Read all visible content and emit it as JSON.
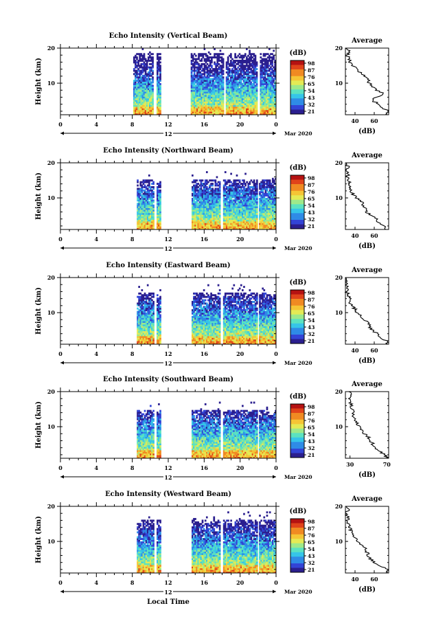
{
  "figure": {
    "date_label": "Mar 2020",
    "xlabel": "Local Time",
    "avg_title": "Average",
    "avg_xlabel": "(dB)",
    "colorbar_unit": "(dB)"
  },
  "colors": {
    "colormap": [
      "#2b1f8f",
      "#3344d6",
      "#2f8be6",
      "#36c5e8",
      "#5ce2c0",
      "#9ee98a",
      "#e4ea55",
      "#f5c535",
      "#f08a22",
      "#e0431a",
      "#b51212"
    ],
    "profile": "#000000"
  },
  "chart_data": [
    {
      "type": "heatmap",
      "title": "Echo Intensity (Vertical Beam)",
      "ylabel": "Height (km)",
      "xlim": [
        0,
        24
      ],
      "ylim": [
        1,
        20
      ],
      "xticks": [
        {
          "v": 0,
          "t": "0"
        },
        {
          "v": 4,
          "t": "4"
        },
        {
          "v": 8,
          "t": "8"
        },
        {
          "v": 12,
          "t": "12"
        },
        {
          "v": 16,
          "t": "16"
        },
        {
          "v": 20,
          "t": "20"
        },
        {
          "v": 24,
          "t": "0"
        }
      ],
      "yticks": [
        {
          "v": 10,
          "t": "10"
        },
        {
          "v": 20,
          "t": "20"
        }
      ],
      "day_label": "12",
      "colorbar_ticks": [
        "98",
        "87",
        "76",
        "65",
        "54",
        "43",
        "32",
        "21"
      ],
      "data_intervals": [
        [
          8.1,
          10.3
        ],
        [
          10.7,
          11.1
        ],
        [
          14.5,
          18.1
        ],
        [
          18.4,
          21.9
        ],
        [
          22.2,
          24
        ]
      ],
      "top_height_km": 18.5,
      "avg_profile": {
        "xlim": [
          30,
          75
        ],
        "xticks": [
          {
            "v": 40,
            "t": "40"
          },
          {
            "v": 60,
            "t": "60"
          }
        ],
        "height_km": [
          1,
          2,
          3,
          4,
          5,
          6,
          7,
          8,
          9,
          10,
          11,
          12,
          13,
          14,
          15,
          16,
          17,
          18,
          19,
          20
        ],
        "db": [
          72,
          75,
          68,
          66,
          58,
          62,
          70,
          62,
          58,
          55,
          54,
          50,
          46,
          42,
          38,
          35,
          33,
          32,
          35,
          30
        ]
      }
    },
    {
      "type": "heatmap",
      "title": "Echo Intensity (Northward Beam)",
      "ylabel": "Height (km)",
      "xlim": [
        0,
        24
      ],
      "ylim": [
        1,
        20
      ],
      "xticks": [
        {
          "v": 0,
          "t": "0"
        },
        {
          "v": 4,
          "t": "4"
        },
        {
          "v": 8,
          "t": "8"
        },
        {
          "v": 12,
          "t": "12"
        },
        {
          "v": 16,
          "t": "16"
        },
        {
          "v": 20,
          "t": "20"
        },
        {
          "v": 24,
          "t": "0"
        }
      ],
      "yticks": [
        {
          "v": 10,
          "t": "10"
        },
        {
          "v": 20,
          "t": "20"
        }
      ],
      "day_label": "12",
      "colorbar_ticks": [
        "98",
        "87",
        "76",
        "65",
        "54",
        "43",
        "32",
        "21"
      ],
      "data_intervals": [
        [
          8.5,
          10.3
        ],
        [
          10.7,
          11.1
        ],
        [
          14.6,
          17.8
        ],
        [
          18.1,
          21.8
        ],
        [
          22.1,
          24
        ]
      ],
      "top_height_km": 15,
      "avg_profile": {
        "xlim": [
          30,
          75
        ],
        "xticks": [
          {
            "v": 40,
            "t": "40"
          },
          {
            "v": 60,
            "t": "60"
          }
        ],
        "height_km": [
          1,
          2,
          3,
          4,
          5,
          6,
          7,
          8,
          9,
          10,
          11,
          12,
          13,
          14,
          15,
          16,
          17,
          18,
          19,
          20
        ],
        "db": [
          72,
          70,
          64,
          62,
          56,
          52,
          52,
          48,
          46,
          42,
          38,
          36,
          34,
          35,
          33,
          32,
          33,
          31,
          33,
          30
        ]
      }
    },
    {
      "type": "heatmap",
      "title": "Echo Intensity (Eastward Beam)",
      "ylabel": "Height (km)",
      "xlim": [
        0,
        24
      ],
      "ylim": [
        1,
        20
      ],
      "xticks": [
        {
          "v": 0,
          "t": "0"
        },
        {
          "v": 4,
          "t": "4"
        },
        {
          "v": 8,
          "t": "8"
        },
        {
          "v": 12,
          "t": "12"
        },
        {
          "v": 16,
          "t": "16"
        },
        {
          "v": 20,
          "t": "20"
        },
        {
          "v": 24,
          "t": "0"
        }
      ],
      "yticks": [
        {
          "v": 10,
          "t": "10"
        },
        {
          "v": 20,
          "t": "20"
        }
      ],
      "day_label": "12",
      "colorbar_ticks": [
        "98",
        "87",
        "76",
        "65",
        "54",
        "43",
        "32",
        "21"
      ],
      "data_intervals": [
        [
          8.5,
          10.3
        ],
        [
          10.7,
          11.1
        ],
        [
          14.6,
          17.8
        ],
        [
          18.1,
          21.8
        ],
        [
          22.1,
          24
        ]
      ],
      "top_height_km": 15.5,
      "avg_profile": {
        "xlim": [
          30,
          75
        ],
        "xticks": [
          {
            "v": 40,
            "t": "40"
          },
          {
            "v": 60,
            "t": "60"
          }
        ],
        "height_km": [
          1,
          2,
          3,
          4,
          5,
          6,
          7,
          8,
          9,
          10,
          11,
          12,
          13,
          14,
          15,
          16,
          17,
          18,
          19,
          20
        ],
        "db": [
          74,
          72,
          66,
          63,
          58,
          55,
          54,
          50,
          46,
          42,
          40,
          37,
          35,
          34,
          33,
          31,
          32,
          30,
          32,
          30
        ]
      }
    },
    {
      "type": "heatmap",
      "title": "Echo Intensity (Southward Beam)",
      "ylabel": "Height (km)",
      "xlim": [
        0,
        24
      ],
      "ylim": [
        1,
        20
      ],
      "xticks": [
        {
          "v": 0,
          "t": "0"
        },
        {
          "v": 4,
          "t": "4"
        },
        {
          "v": 8,
          "t": "8"
        },
        {
          "v": 12,
          "t": "12"
        },
        {
          "v": 16,
          "t": "16"
        },
        {
          "v": 20,
          "t": "20"
        },
        {
          "v": 24,
          "t": "0"
        }
      ],
      "yticks": [
        {
          "v": 10,
          "t": "10"
        },
        {
          "v": 20,
          "t": "20"
        }
      ],
      "day_label": "12",
      "colorbar_ticks": [
        "98",
        "87",
        "76",
        "65",
        "54",
        "43",
        "32",
        "21"
      ],
      "data_intervals": [
        [
          8.5,
          10.3
        ],
        [
          10.7,
          11.1
        ],
        [
          14.6,
          17.8
        ],
        [
          18.1,
          21.8
        ],
        [
          22.1,
          24
        ]
      ],
      "top_height_km": 14.5,
      "avg_profile": {
        "xlim": [
          25,
          72
        ],
        "xticks": [
          {
            "v": 30,
            "t": "30"
          },
          {
            "v": 70,
            "t": "70"
          }
        ],
        "height_km": [
          1,
          2,
          3,
          4,
          5,
          6,
          7,
          8,
          9,
          10,
          11,
          12,
          13,
          14,
          15,
          16,
          17,
          18,
          19,
          20
        ],
        "db": [
          70,
          68,
          62,
          58,
          55,
          52,
          50,
          46,
          44,
          40,
          38,
          36,
          34,
          33,
          32,
          31,
          31,
          30,
          32,
          30
        ]
      }
    },
    {
      "type": "heatmap",
      "title": "Echo Intensity (Westward Beam)",
      "ylabel": "Height (km)",
      "xlim": [
        0,
        24
      ],
      "ylim": [
        1,
        20
      ],
      "xticks": [
        {
          "v": 0,
          "t": "0"
        },
        {
          "v": 4,
          "t": "4"
        },
        {
          "v": 8,
          "t": "8"
        },
        {
          "v": 12,
          "t": "12"
        },
        {
          "v": 16,
          "t": "16"
        },
        {
          "v": 20,
          "t": "20"
        },
        {
          "v": 24,
          "t": "0"
        }
      ],
      "yticks": [
        {
          "v": 10,
          "t": "10"
        },
        {
          "v": 20,
          "t": "20"
        }
      ],
      "day_label": "12",
      "colorbar_ticks": [
        "98",
        "87",
        "76",
        "65",
        "54",
        "43",
        "32",
        "21"
      ],
      "data_intervals": [
        [
          8.5,
          10.3
        ],
        [
          10.7,
          11.1
        ],
        [
          14.6,
          17.8
        ],
        [
          18.1,
          21.8
        ],
        [
          22.1,
          24
        ]
      ],
      "top_height_km": 16,
      "avg_profile": {
        "xlim": [
          30,
          75
        ],
        "xticks": [
          {
            "v": 40,
            "t": "40"
          },
          {
            "v": 60,
            "t": "60"
          }
        ],
        "height_km": [
          1,
          2,
          3,
          4,
          5,
          6,
          7,
          8,
          9,
          10,
          11,
          12,
          13,
          14,
          15,
          16,
          17,
          18,
          19,
          20
        ],
        "db": [
          72,
          74,
          66,
          60,
          56,
          54,
          52,
          50,
          47,
          43,
          40,
          38,
          36,
          34,
          33,
          32,
          33,
          31,
          33,
          30
        ]
      }
    }
  ]
}
